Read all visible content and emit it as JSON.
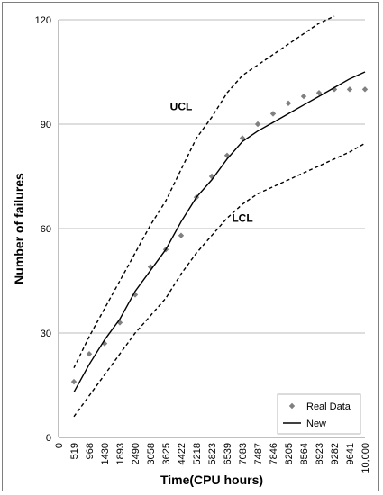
{
  "chart_data": {
    "type": "line",
    "xlabel": "Time(CPU hours)",
    "ylabel": "Number of failures",
    "ylim": [
      0,
      120
    ],
    "yticks": [
      0,
      30,
      60,
      90,
      120
    ],
    "categories": [
      "0",
      "519",
      "968",
      "1430",
      "1893",
      "2490",
      "3058",
      "3625",
      "4422",
      "5218",
      "5823",
      "6539",
      "7083",
      "7487",
      "7846",
      "8205",
      "8564",
      "8923",
      "9282",
      "9641",
      "10,000"
    ],
    "grid": "horizontal",
    "legend_position": "bottom-right",
    "series": [
      {
        "name": "Real Data",
        "style": "markers",
        "color": "#808080",
        "values": [
          null,
          16,
          24,
          27,
          33,
          41,
          49,
          54,
          58,
          69,
          75,
          81,
          86,
          90,
          93,
          96,
          98,
          99,
          100,
          100,
          100
        ]
      },
      {
        "name": "New",
        "style": "solid",
        "color": "#000000",
        "values": [
          null,
          13,
          21,
          28,
          34,
          42,
          48,
          54,
          62,
          69,
          74,
          80,
          85,
          88,
          90.5,
          93,
          95.5,
          98,
          100.5,
          103,
          105
        ]
      },
      {
        "style": "dashed",
        "color": "#000000",
        "values": [
          null,
          20,
          29,
          37,
          45,
          53,
          61,
          68,
          77,
          86,
          92,
          99,
          104,
          107,
          110,
          113,
          116,
          119,
          121,
          null,
          null
        ]
      },
      {
        "style": "dashed",
        "color": "#000000",
        "values": [
          null,
          6,
          12,
          18,
          24,
          30,
          35,
          40,
          47,
          53,
          58,
          63,
          67,
          70,
          72,
          74,
          76,
          78,
          80,
          82,
          84.5
        ]
      }
    ],
    "annotations": [
      {
        "text": "UCL",
        "x": "4422",
        "y": 94
      },
      {
        "text": "LCL",
        "x": "7083",
        "y": 62
      }
    ]
  }
}
